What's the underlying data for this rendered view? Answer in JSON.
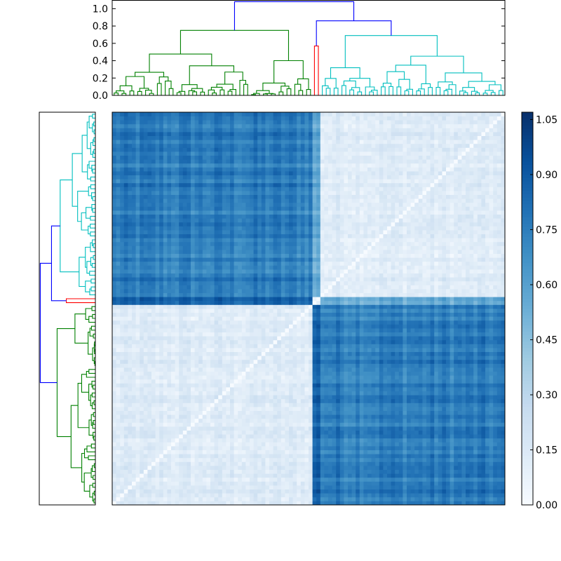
{
  "chart_data": {
    "type": "heatmap",
    "title": "",
    "description_visible": false,
    "top_dendrogram": {
      "ylim": [
        0,
        1.1
      ],
      "y_ticks": [
        "0.0",
        "0.2",
        "0.4",
        "0.6",
        "0.8",
        "1.0"
      ],
      "y_tick_values": [
        0,
        0.2,
        0.4,
        0.6,
        0.8,
        1.0
      ],
      "root_height": 1.08,
      "clusters": [
        {
          "name": "green",
          "color": "#008000",
          "leaves": 51,
          "top_height": 0.75,
          "parent_height": 1.08
        },
        {
          "name": "red",
          "color": "#ff0000",
          "leaves": 2,
          "top_height": 0.57,
          "parent_height": 0.86
        },
        {
          "name": "cyan",
          "color": "#00bfbf",
          "leaves": 47,
          "top_height": 0.69,
          "parent_height": 0.86
        }
      ],
      "link_color_above_threshold": "#0000ff"
    },
    "colorbar": {
      "cmap": "Blues",
      "range": [
        0.0,
        1.07
      ],
      "tick_labels": [
        "0.00",
        "0.15",
        "0.30",
        "0.45",
        "0.60",
        "0.75",
        "0.90",
        "1.05"
      ],
      "tick_values": [
        0.0,
        0.15,
        0.3,
        0.45,
        0.6,
        0.75,
        0.9,
        1.05
      ]
    },
    "matrix": {
      "n": 100,
      "block_boundaries": [
        51,
        53
      ],
      "within_cluster_value": 0.08,
      "between_cluster_value": 0.75,
      "diagonal_value": 0.0
    }
  }
}
